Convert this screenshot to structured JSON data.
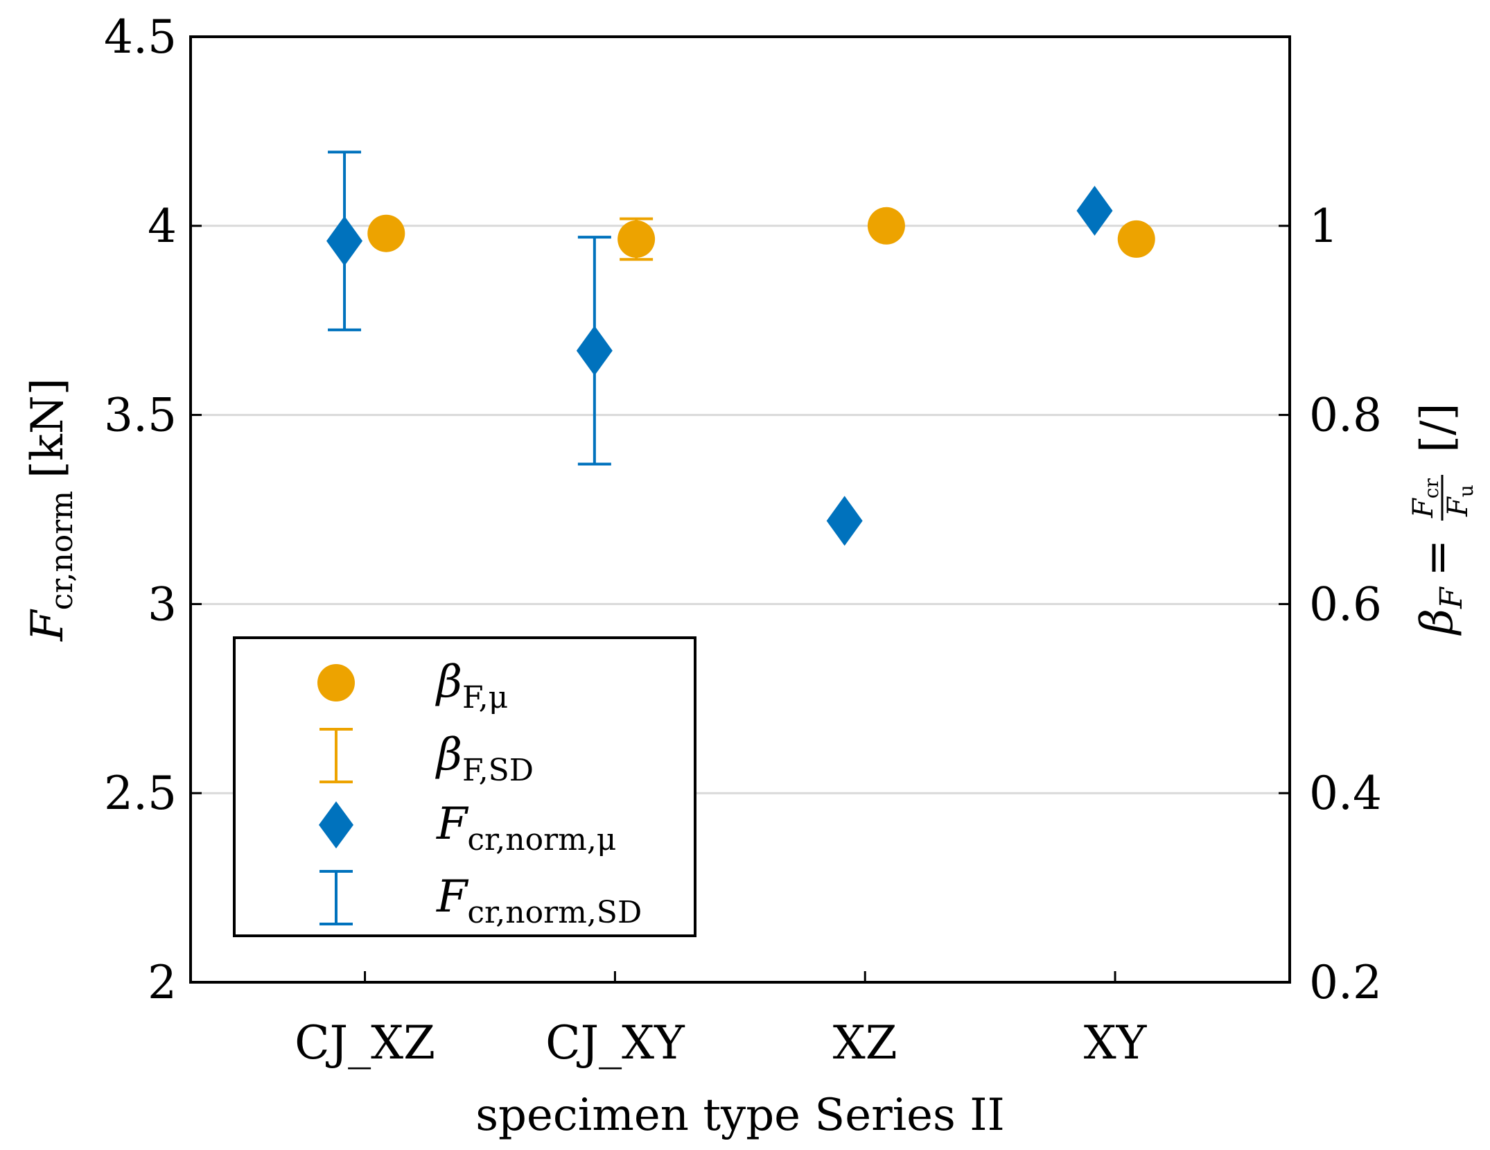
{
  "chart_data": {
    "type": "scatter",
    "title": "",
    "xlabel": "specimen type Series II",
    "categories": [
      "CJ_XZ",
      "CJ_XY",
      "XZ",
      "XY"
    ],
    "y_left": {
      "label_main": "F",
      "label_sub": "cr,norm",
      "label_unit": "[kN]",
      "lim": [
        2,
        4.5
      ],
      "ticks": [
        2,
        2.5,
        3,
        3.5,
        4,
        4.5
      ],
      "tick_labels": [
        "2",
        "2.5",
        "3",
        "3.5",
        "4",
        "4.5"
      ]
    },
    "y_right": {
      "label_main": "β",
      "label_sub": "F",
      "label_eq": "=",
      "label_num_main": "F",
      "label_num_sub": "cr",
      "label_den_main": "F",
      "label_den_sub": "u",
      "label_unit": "[/]",
      "lim": [
        0.2,
        1.2
      ],
      "ticks": [
        0.2,
        0.4,
        0.6,
        0.8,
        1.0
      ],
      "tick_labels": [
        "0.2",
        "0.4",
        "0.6",
        "0.8",
        "1"
      ]
    },
    "grid": true,
    "series": [
      {
        "name": "F_cr,norm,μ",
        "axis": "left",
        "marker": "diamond",
        "color": "#0072BD",
        "values": [
          3.96,
          3.67,
          3.22,
          4.04
        ],
        "sd": [
          0.235,
          0.3,
          0.0,
          0.0
        ]
      },
      {
        "name": "β_F,μ",
        "axis": "right",
        "marker": "circle",
        "color": "#EDA300",
        "values": [
          0.992,
          0.986,
          1.0,
          0.986
        ],
        "sd": [
          0.0,
          0.0215,
          0.0,
          0.0
        ]
      }
    ],
    "legend": {
      "position": "bottom-left",
      "entries": [
        {
          "symbol": "circle",
          "color": "#EDA300",
          "main": "β",
          "sub": "F,μ"
        },
        {
          "symbol": "errorbar",
          "color": "#EDA300",
          "main": "β",
          "sub": "F,SD"
        },
        {
          "symbol": "diamond",
          "color": "#0072BD",
          "main": "F",
          "sub": "cr,norm,μ"
        },
        {
          "symbol": "errorbar",
          "color": "#0072BD",
          "main": "F",
          "sub": "cr,norm,SD"
        }
      ]
    }
  }
}
